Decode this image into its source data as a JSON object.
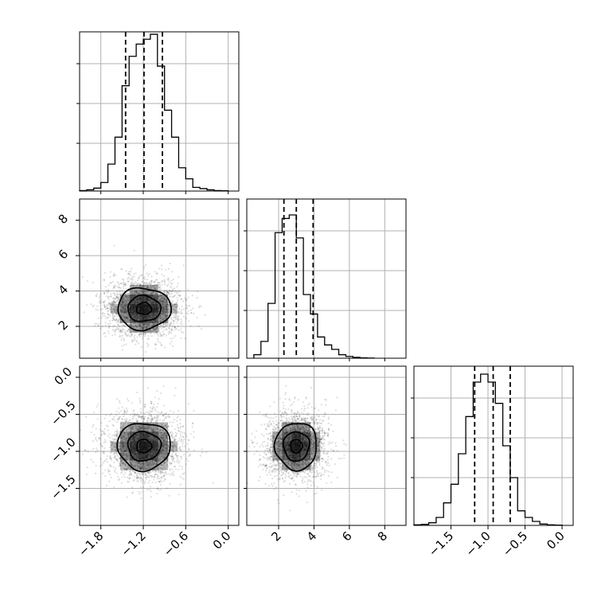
{
  "chart_data": {
    "type": "corner",
    "parameters": [
      {
        "range": [
          -2.1,
          0.15
        ],
        "ticks": [
          -1.8,
          -1.2,
          -0.6,
          0.0
        ],
        "tick_labels": [
          "−1.8",
          "−1.2",
          "−0.6",
          "0.0"
        ],
        "quantiles": [
          -1.45,
          -1.19,
          -0.93
        ],
        "hist_ylim": [
          0,
          650
        ],
        "hist_edges": [
          -2.1,
          -2.0,
          -1.9,
          -1.8,
          -1.7,
          -1.6,
          -1.5,
          -1.4,
          -1.3,
          -1.2,
          -1.1,
          -1.0,
          -0.9,
          -0.8,
          -0.7,
          -0.6,
          -0.5,
          -0.4,
          -0.3,
          -0.2,
          -0.1,
          0.0
        ],
        "hist_counts": [
          2,
          5,
          12,
          35,
          110,
          220,
          430,
          550,
          600,
          620,
          640,
          510,
          330,
          220,
          95,
          50,
          15,
          10,
          5,
          2,
          1
        ]
      },
      {
        "range": [
          0.2,
          9.2
        ],
        "ticks": [
          2,
          4,
          6,
          8
        ],
        "tick_labels": [
          "2",
          "4",
          "6",
          "8"
        ],
        "quantiles": [
          2.3,
          3.0,
          3.95
        ],
        "hist_ylim": [
          0,
          900
        ],
        "hist_edges": [
          0.6,
          1.0,
          1.4,
          1.8,
          2.2,
          2.6,
          3.0,
          3.4,
          3.8,
          4.2,
          4.6,
          5.0,
          5.4,
          5.8,
          6.2,
          6.6,
          7.0,
          7.4
        ],
        "hist_counts": [
          20,
          95,
          310,
          710,
          790,
          810,
          680,
          360,
          250,
          120,
          75,
          50,
          20,
          10,
          5,
          2,
          1
        ]
      },
      {
        "range": [
          -2.0,
          0.15
        ],
        "ticks": [
          -1.5,
          -1.0,
          -0.5,
          0.0
        ],
        "tick_labels": [
          "−1.5",
          "−1.0",
          "−0.5",
          "0.0"
        ],
        "quantiles": [
          -1.18,
          -0.93,
          -0.7
        ],
        "hist_ylim": [
          0,
          600
        ],
        "hist_edges": [
          -2.0,
          -1.9,
          -1.8,
          -1.7,
          -1.6,
          -1.5,
          -1.4,
          -1.3,
          -1.2,
          -1.1,
          -1.0,
          -0.9,
          -0.8,
          -0.7,
          -0.6,
          -0.5,
          -0.4,
          -0.3,
          -0.2,
          -0.1,
          0.0
        ],
        "hist_counts": [
          2,
          4,
          10,
          30,
          85,
          155,
          270,
          410,
          540,
          570,
          540,
          460,
          300,
          180,
          55,
          30,
          15,
          5,
          2,
          1
        ]
      }
    ],
    "joint": [
      {
        "x_param": 0,
        "y_param": 1,
        "center": [
          -1.19,
          3.0
        ],
        "sigma": [
          0.27,
          0.85
        ],
        "levels": [
          0.39,
          0.86,
          1.39
        ]
      },
      {
        "x_param": 0,
        "y_param": 2,
        "center": [
          -1.19,
          -0.93
        ],
        "sigma": [
          0.27,
          0.23
        ],
        "levels": [
          0.39,
          0.86,
          1.39
        ]
      },
      {
        "x_param": 1,
        "y_param": 2,
        "center": [
          3.0,
          -0.93
        ],
        "sigma": [
          0.85,
          0.23
        ],
        "levels": [
          0.39,
          0.86,
          1.39
        ]
      }
    ],
    "grid": true
  }
}
